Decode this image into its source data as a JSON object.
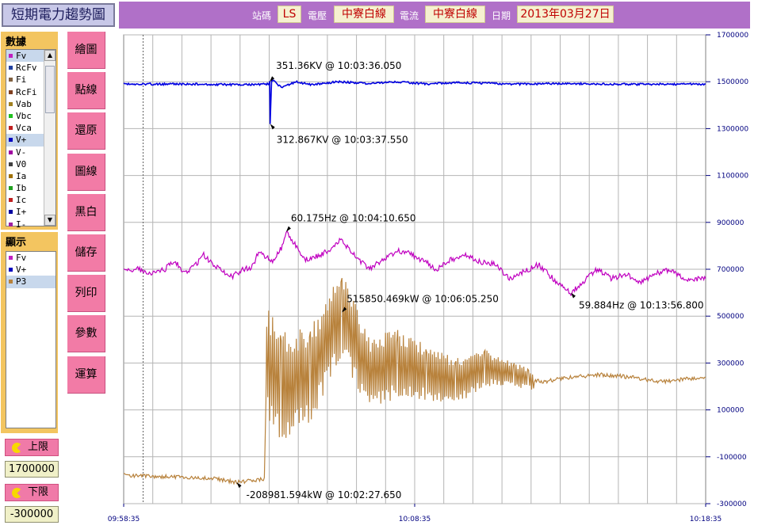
{
  "header": {
    "title": "短期電力趨勢圖",
    "station_label": "站碼",
    "station_value": "LS",
    "voltage_label": "電壓",
    "voltage_value": "中寮白線",
    "current_label": "電流",
    "current_value": "中寮白線",
    "date_label": "日期",
    "date_value": "2013年03月27日"
  },
  "data_panel": {
    "title": "數據",
    "items": [
      {
        "label": "Fv",
        "color": "#c020c0"
      },
      {
        "label": "RcFv",
        "color": "#2040a0"
      },
      {
        "label": "Fi",
        "color": "#806040"
      },
      {
        "label": "RcFi",
        "color": "#804020"
      },
      {
        "label": "Vab",
        "color": "#a08020"
      },
      {
        "label": "Vbc",
        "color": "#20c020"
      },
      {
        "label": "Vca",
        "color": "#c02020"
      },
      {
        "label": "V+",
        "color": "#0000c0"
      },
      {
        "label": "V-",
        "color": "#a000a0"
      },
      {
        "label": "V0",
        "color": "#404040"
      },
      {
        "label": "Ia",
        "color": "#a07000"
      },
      {
        "label": "Ib",
        "color": "#20a020"
      },
      {
        "label": "Ic",
        "color": "#c02020"
      },
      {
        "label": "I+",
        "color": "#0000a0"
      },
      {
        "label": "I-",
        "color": "#a020a0"
      }
    ]
  },
  "display_panel": {
    "title": "顯示",
    "items": [
      {
        "label": "Fv",
        "color": "#c020c0"
      },
      {
        "label": "V+",
        "color": "#0000c0"
      },
      {
        "label": "P3",
        "color": "#b8823c"
      }
    ]
  },
  "limits": {
    "upper_label": "上限",
    "upper_value": "1700000",
    "lower_label": "下限",
    "lower_value": "-300000"
  },
  "buttons": {
    "draw": "繪圖",
    "points": "點線",
    "restore": "還原",
    "graph": "圖線",
    "blackwhite": "黑白",
    "save": "儲存",
    "print": "列印",
    "params": "參數",
    "compute": "運算"
  },
  "colors": {
    "vplus": "#0000e0",
    "fv": "#c000c0",
    "p3": "#b8823c",
    "axis_text": "#000080",
    "grid": "#b4b4b4",
    "button": "#f27ba6",
    "panel": "#f3c560",
    "header_bar": "#b070c8"
  },
  "chart_data": {
    "type": "line",
    "x_ticks": [
      "09:58:35",
      "10:08:35",
      "10:18:35"
    ],
    "y_ticks": [
      "1700000",
      "1500000",
      "1300000",
      "1100000",
      "900000",
      "700000",
      "500000",
      "300000",
      "100000",
      "-100000",
      "-300000"
    ],
    "ylim": [
      -300000,
      1700000
    ],
    "grid": true,
    "cursor_time": "09:59:15",
    "series": [
      {
        "name": "V+",
        "points": [
          [
            "09:58:35",
            1490000
          ],
          [
            "10:01:00",
            1490000
          ],
          [
            "10:02:30",
            1487000
          ],
          [
            "10:03:35",
            1490000
          ],
          [
            "10:03:36",
            1500000
          ],
          [
            "10:03:37",
            1320000
          ],
          [
            "10:03:40",
            1510000
          ],
          [
            "10:04:00",
            1475000
          ],
          [
            "10:04:30",
            1500000
          ],
          [
            "10:05:00",
            1488000
          ],
          [
            "10:06:00",
            1500000
          ],
          [
            "10:07:00",
            1492000
          ],
          [
            "10:08:00",
            1500000
          ],
          [
            "10:09:00",
            1490000
          ],
          [
            "10:10:00",
            1497000
          ],
          [
            "10:12:00",
            1490000
          ],
          [
            "10:14:00",
            1492000
          ],
          [
            "10:16:00",
            1489000
          ],
          [
            "10:18:35",
            1490000
          ]
        ]
      },
      {
        "name": "Fv",
        "points": [
          [
            "09:58:35",
            690000
          ],
          [
            "09:59:00",
            705000
          ],
          [
            "09:59:30",
            680000
          ],
          [
            "10:00:00",
            700000
          ],
          [
            "10:00:20",
            740000
          ],
          [
            "10:00:40",
            680000
          ],
          [
            "10:01:00",
            710000
          ],
          [
            "10:01:20",
            760000
          ],
          [
            "10:01:40",
            720000
          ],
          [
            "10:02:00",
            690000
          ],
          [
            "10:02:20",
            670000
          ],
          [
            "10:02:40",
            700000
          ],
          [
            "10:03:00",
            710000
          ],
          [
            "10:03:15",
            780000
          ],
          [
            "10:03:30",
            750000
          ],
          [
            "10:03:40",
            730000
          ],
          [
            "10:04:00",
            790000
          ],
          [
            "10:04:10",
            860000
          ],
          [
            "10:04:30",
            800000
          ],
          [
            "10:04:50",
            740000
          ],
          [
            "10:05:20",
            760000
          ],
          [
            "10:05:50",
            800000
          ],
          [
            "10:06:00",
            830000
          ],
          [
            "10:06:30",
            760000
          ],
          [
            "10:07:00",
            700000
          ],
          [
            "10:07:30",
            740000
          ],
          [
            "10:08:00",
            780000
          ],
          [
            "10:08:20",
            770000
          ],
          [
            "10:08:50",
            740000
          ],
          [
            "10:09:20",
            700000
          ],
          [
            "10:09:50",
            740000
          ],
          [
            "10:10:20",
            760000
          ],
          [
            "10:10:50",
            730000
          ],
          [
            "10:11:20",
            720000
          ],
          [
            "10:11:50",
            660000
          ],
          [
            "10:12:20",
            690000
          ],
          [
            "10:12:50",
            720000
          ],
          [
            "10:13:20",
            660000
          ],
          [
            "10:13:57",
            600000
          ],
          [
            "10:14:20",
            640000
          ],
          [
            "10:14:50",
            700000
          ],
          [
            "10:15:20",
            660000
          ],
          [
            "10:15:50",
            680000
          ],
          [
            "10:16:20",
            640000
          ],
          [
            "10:16:50",
            680000
          ],
          [
            "10:17:20",
            700000
          ],
          [
            "10:17:50",
            660000
          ],
          [
            "10:18:35",
            660000
          ]
        ]
      },
      {
        "name": "P3",
        "points": [
          [
            "09:58:35",
            -180000
          ],
          [
            "10:00:00",
            -185000
          ],
          [
            "10:01:30",
            -190000
          ],
          [
            "10:02:28",
            -209000
          ],
          [
            "10:03:00",
            -200000
          ],
          [
            "10:03:25",
            -195000
          ],
          [
            "10:03:30",
            300000
          ],
          [
            "10:04:00",
            200000
          ],
          [
            "10:05:00",
            250000
          ],
          [
            "10:06:05",
            515850
          ],
          [
            "10:07:00",
            250000
          ],
          [
            "10:08:00",
            300000
          ],
          [
            "10:09:00",
            260000
          ],
          [
            "10:10:00",
            220000
          ],
          [
            "10:11:00",
            280000
          ],
          [
            "10:12:00",
            250000
          ],
          [
            "10:12:30",
            230000
          ],
          [
            "10:13:00",
            220000
          ],
          [
            "10:14:00",
            240000
          ],
          [
            "10:15:00",
            250000
          ],
          [
            "10:16:00",
            240000
          ],
          [
            "10:17:00",
            220000
          ],
          [
            "10:18:35",
            240000
          ]
        ]
      }
    ],
    "annotations": [
      {
        "text": "351.36KV @ 10:03:36.050",
        "time": "10:03:36",
        "value": 1500000
      },
      {
        "text": "312.867KV @ 10:03:37.550",
        "time": "10:03:37",
        "value": 1320000
      },
      {
        "text": "60.175Hz @ 10:04:10.650",
        "time": "10:04:10",
        "value": 860000
      },
      {
        "text": "515850.469kW @ 10:06:05.250",
        "time": "10:06:05",
        "value": 515850
      },
      {
        "text": "59.884Hz @ 10:13:56.800",
        "time": "10:13:57",
        "value": 600000
      },
      {
        "text": "-208981.594kW @ 10:02:27.650",
        "time": "10:02:28",
        "value": -209000
      }
    ]
  }
}
